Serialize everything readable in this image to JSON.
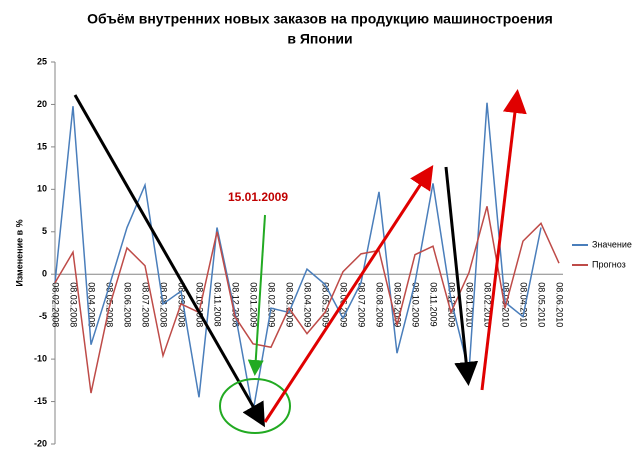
{
  "chart_data": {
    "type": "line",
    "title": [
      "Объём внутренних новых заказов на продукцию машиностроения",
      "в Японии"
    ],
    "y_label": "Изменение в %",
    "annotation": "15.01.2009",
    "categories": [
      "08.02.2008",
      "08.03.2008",
      "08.04.2008",
      "08.05.2008",
      "08.06.2008",
      "08.07.2008",
      "08.08.2008",
      "08.09.2008",
      "08.10.2008",
      "08.11.2008",
      "08.12.2008",
      "08.01.2009",
      "08.02.2009",
      "08.03.2009",
      "08.04.2009",
      "08.05.2009",
      "08.06.2009",
      "08.07.2009",
      "08.08.2009",
      "08.09.2009",
      "08.10.2009",
      "08.11.2009",
      "08.12.2009",
      "08.01.2010",
      "08.02.2010",
      "08.03.2010",
      "08.04.2010",
      "08.05.2010",
      "08.06.2010"
    ],
    "series": [
      {
        "name": "Значение",
        "color": "#4a7ebb",
        "values": [
          -1,
          19.8,
          -8.3,
          -1.5,
          5.5,
          10.5,
          -3.5,
          -2,
          -14.5,
          5.5,
          -4.5,
          -16.2,
          -4,
          -4.5,
          0.6,
          -1.2,
          -5.2,
          -1,
          9.7,
          -9.3,
          -1,
          10.7,
          -3,
          -11.5,
          20.2,
          -3.3,
          -5,
          5.5,
          null
        ]
      },
      {
        "name": "Прогноз",
        "color": "#be4b48",
        "values": [
          -1,
          2.6,
          -14,
          -4,
          3.1,
          1,
          -9.6,
          -3.5,
          -4.5,
          5,
          -5,
          -8.2,
          -8.6,
          -4,
          -7,
          -4.5,
          0.3,
          2.4,
          2.8,
          -6,
          2.3,
          3.3,
          -4.5,
          0.2,
          8,
          -4,
          3.9,
          6,
          1.3
        ]
      }
    ],
    "ylim": [
      -20,
      25
    ],
    "yticks": [
      -20,
      -15,
      -10,
      -5,
      0,
      5,
      10,
      15,
      20,
      25
    ],
    "grid": false,
    "legend": "right"
  }
}
